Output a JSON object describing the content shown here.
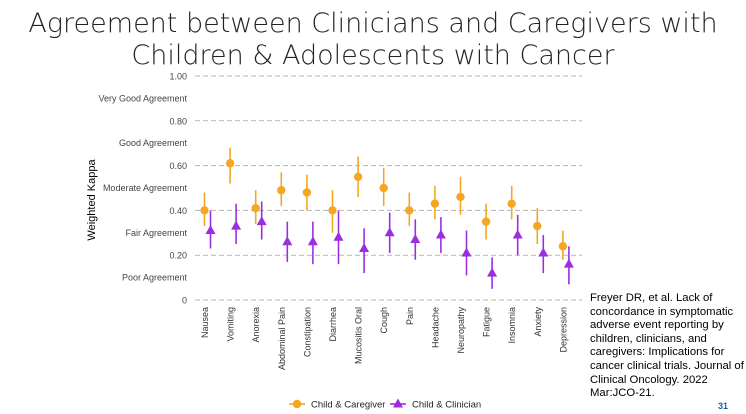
{
  "slide": {
    "title_line1": "Agreement between Clinicians and Caregivers with",
    "title_line2": "Children & Adolescents with Cancer",
    "citation": "Freyer DR, et al. Lack of concordance in symptomatic adverse event reporting by children, clinicians, and caregivers: Implications for cancer clinical trials. Journal of Clinical Oncology. 2022 Mar:JCO-21.",
    "slide_number": "31"
  },
  "chart_data": {
    "type": "scatter",
    "title": "",
    "xlabel": "",
    "ylabel": "Weighted Kappa",
    "ylim": [
      0,
      1.0
    ],
    "yticks": [
      "0",
      "0.20",
      "0.40",
      "0.60",
      "0.80",
      "1.00"
    ],
    "agreement_bands": [
      "Poor Agreement",
      "Fair Agreement",
      "Moderate Agreement",
      "Good Agreement",
      "Very Good Agreement"
    ],
    "grid": "horizontal dashed",
    "legend_position": "bottom",
    "categories": [
      "Nausea",
      "Vomiting",
      "Anorexia",
      "Abdominal Pain",
      "Constipation",
      "Diarrhea",
      "Mucositis Oral",
      "Cough",
      "Pain",
      "Headache",
      "Neuropathy",
      "Fatigue",
      "Insomnia",
      "Anxiety",
      "Depression"
    ],
    "series": [
      {
        "name": "Child & Caregiver",
        "color": "#F5A623",
        "marker": "circle",
        "values": [
          0.4,
          0.61,
          0.41,
          0.49,
          0.48,
          0.4,
          0.55,
          0.5,
          0.4,
          0.43,
          0.46,
          0.35,
          0.43,
          0.33,
          0.24
        ],
        "lower": [
          0.33,
          0.52,
          0.34,
          0.42,
          0.4,
          0.3,
          0.46,
          0.42,
          0.33,
          0.36,
          0.38,
          0.27,
          0.36,
          0.25,
          0.18
        ],
        "upper": [
          0.48,
          0.68,
          0.49,
          0.57,
          0.56,
          0.49,
          0.64,
          0.59,
          0.48,
          0.51,
          0.55,
          0.43,
          0.51,
          0.41,
          0.31
        ]
      },
      {
        "name": "Child & Clinician",
        "color": "#9B2FE0",
        "marker": "triangle",
        "values": [
          0.31,
          0.33,
          0.35,
          0.26,
          0.26,
          0.28,
          0.23,
          0.3,
          0.27,
          0.29,
          0.21,
          0.12,
          0.29,
          0.21,
          0.16
        ],
        "lower": [
          0.23,
          0.25,
          0.27,
          0.17,
          0.16,
          0.16,
          0.12,
          0.21,
          0.18,
          0.21,
          0.11,
          0.05,
          0.2,
          0.12,
          0.07
        ],
        "upper": [
          0.4,
          0.43,
          0.44,
          0.35,
          0.35,
          0.4,
          0.32,
          0.39,
          0.36,
          0.37,
          0.31,
          0.19,
          0.38,
          0.29,
          0.24
        ]
      }
    ]
  }
}
